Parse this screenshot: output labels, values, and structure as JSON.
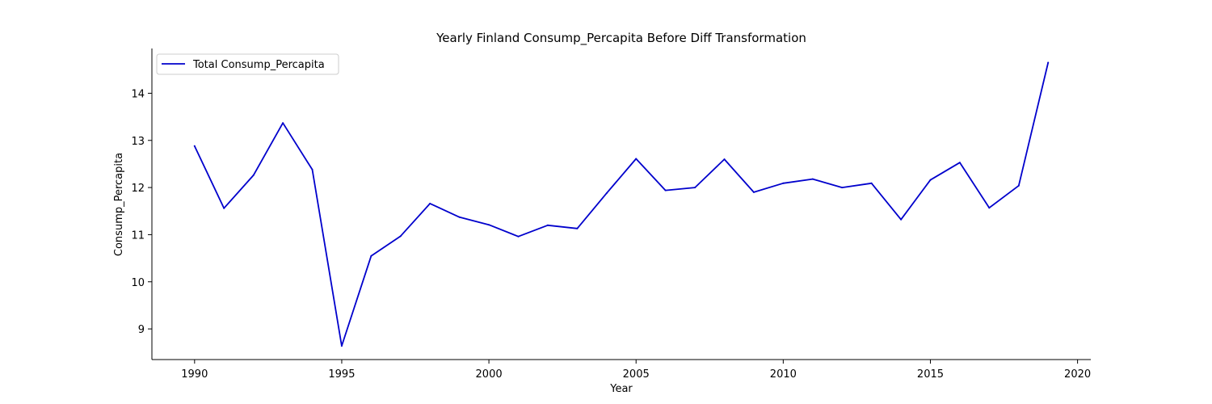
{
  "chart_data": {
    "type": "line",
    "title": "Yearly Finland Consump_Percapita Before Diff Transformation",
    "xlabel": "Year",
    "ylabel": "Consump_Percapita",
    "xlim": [
      1988.55,
      2020.45
    ],
    "ylim": [
      8.35,
      14.95
    ],
    "xticks": [
      1990,
      1995,
      2000,
      2005,
      2010,
      2015,
      2020
    ],
    "yticks": [
      9,
      10,
      11,
      12,
      13,
      14
    ],
    "grid": false,
    "legend_position": "top-left",
    "series": [
      {
        "name": "Total Consump_Percapita",
        "color": "#0000cc",
        "x": [
          1990,
          1991,
          1992,
          1993,
          1994,
          1995,
          1996,
          1997,
          1998,
          1999,
          2000,
          2001,
          2002,
          2003,
          2004,
          2005,
          2006,
          2007,
          2008,
          2009,
          2010,
          2011,
          2012,
          2013,
          2014,
          2015,
          2016,
          2017,
          2018,
          2019
        ],
        "y": [
          12.88,
          11.56,
          12.26,
          13.37,
          12.38,
          8.64,
          10.55,
          10.97,
          11.66,
          11.37,
          11.21,
          10.96,
          11.2,
          11.13,
          11.88,
          12.61,
          11.94,
          12.0,
          12.6,
          11.9,
          12.09,
          12.18,
          12.0,
          12.09,
          11.32,
          12.16,
          12.53,
          11.57,
          12.04,
          14.65
        ]
      }
    ]
  }
}
